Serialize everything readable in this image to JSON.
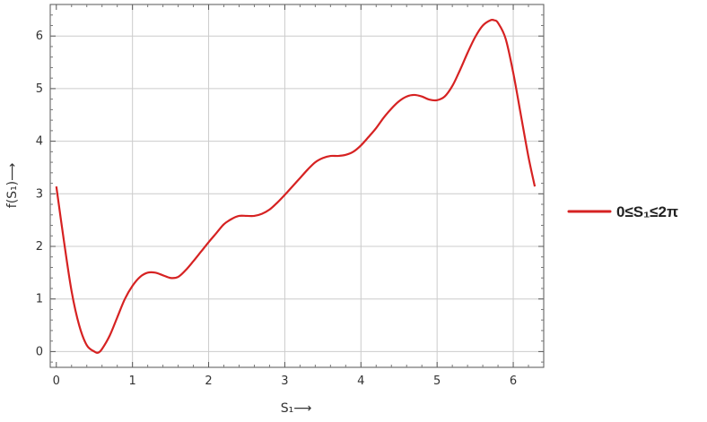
{
  "chart_data": {
    "type": "line",
    "xlabel": "S₁⟶",
    "ylabel": "f(S₁)⟶",
    "xlim": [
      -0.08,
      6.4
    ],
    "ylim": [
      -0.3,
      6.6
    ],
    "x_ticks": [
      "0",
      "1",
      "2",
      "3",
      "4",
      "5",
      "6"
    ],
    "y_ticks": [
      "0",
      "1",
      "2",
      "3",
      "4",
      "5",
      "6"
    ],
    "grid": true,
    "legend_position": "right",
    "series": [
      {
        "name": "0≤S₁≤2π",
        "color": "#d62222",
        "x": [
          0.0,
          0.1,
          0.2,
          0.3,
          0.4,
          0.5,
          0.55,
          0.6,
          0.7,
          0.8,
          0.9,
          1.0,
          1.1,
          1.2,
          1.3,
          1.4,
          1.5,
          1.6,
          1.7,
          1.8,
          1.9,
          2.0,
          2.1,
          2.2,
          2.3,
          2.4,
          2.5,
          2.6,
          2.7,
          2.8,
          2.9,
          3.0,
          3.1,
          3.2,
          3.3,
          3.4,
          3.5,
          3.6,
          3.7,
          3.8,
          3.9,
          4.0,
          4.1,
          4.2,
          4.3,
          4.4,
          4.5,
          4.6,
          4.7,
          4.8,
          4.9,
          5.0,
          5.1,
          5.2,
          5.3,
          5.4,
          5.5,
          5.6,
          5.7,
          5.75,
          5.8,
          5.9,
          6.0,
          6.1,
          6.2,
          6.283
        ],
        "y": [
          3.14,
          2.1,
          1.15,
          0.5,
          0.12,
          0.0,
          -0.02,
          0.05,
          0.3,
          0.65,
          1.0,
          1.25,
          1.42,
          1.5,
          1.5,
          1.45,
          1.4,
          1.42,
          1.55,
          1.72,
          1.9,
          2.08,
          2.25,
          2.42,
          2.52,
          2.58,
          2.58,
          2.58,
          2.62,
          2.7,
          2.83,
          2.98,
          3.14,
          3.3,
          3.46,
          3.6,
          3.68,
          3.72,
          3.72,
          3.74,
          3.8,
          3.92,
          4.08,
          4.25,
          4.45,
          4.62,
          4.76,
          4.85,
          4.88,
          4.85,
          4.79,
          4.78,
          4.85,
          5.05,
          5.35,
          5.68,
          5.98,
          6.2,
          6.3,
          6.3,
          6.25,
          5.95,
          5.3,
          4.5,
          3.7,
          3.14
        ]
      }
    ]
  }
}
